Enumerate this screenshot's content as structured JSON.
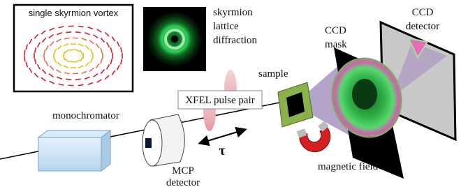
{
  "labels": {
    "vortex": "single skyrmion vortex",
    "diffraction": [
      "skyrmion",
      "lattice",
      "diffraction"
    ],
    "mask": [
      "CCD",
      "mask"
    ],
    "detector": [
      "CCD",
      "detector"
    ],
    "sample": "sample",
    "pulse": "XFEL pulse pair",
    "monochromator": "monochromator",
    "tau": "τ",
    "mcp": [
      "MCP",
      "detector"
    ],
    "magnet": "magnetic field"
  }
}
